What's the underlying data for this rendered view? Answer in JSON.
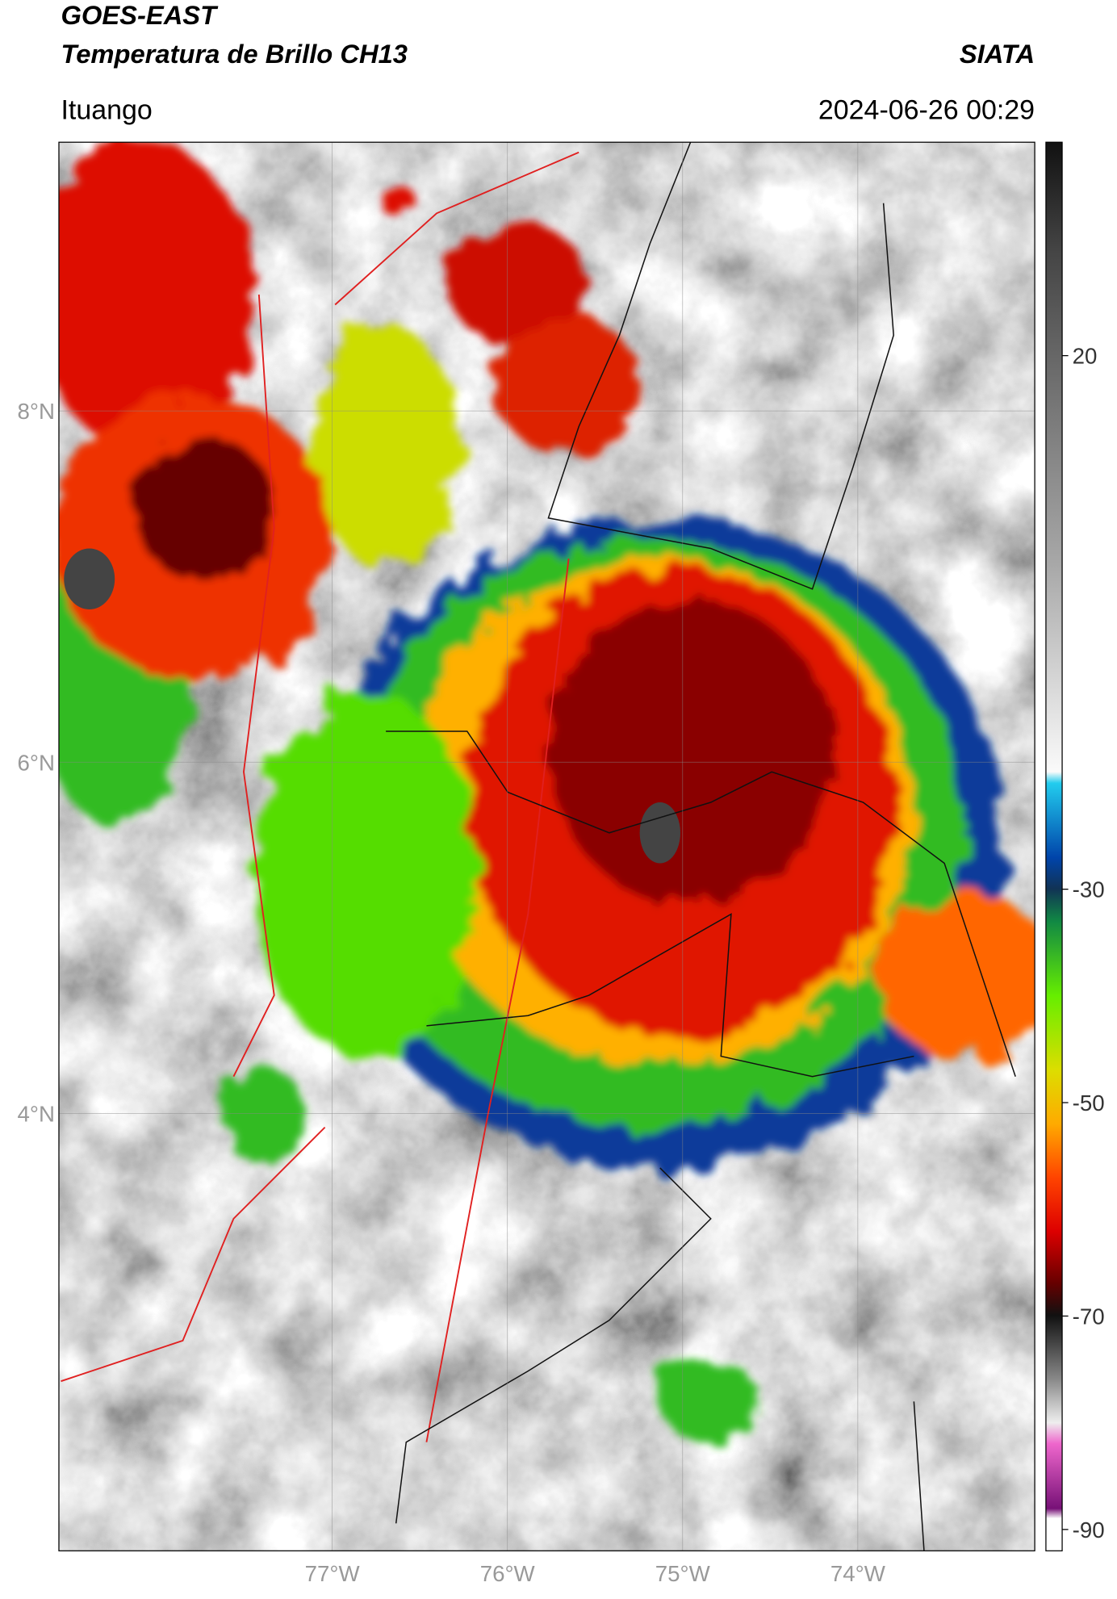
{
  "header": {
    "title_line1": "GOES-EAST",
    "title_line2": "Temperatura de Brillo CH13",
    "source": "SIATA",
    "region": "Ituango",
    "datetime": "2024-06-26 00:29"
  },
  "map": {
    "xlim": [
      -78.56,
      -72.99
    ],
    "ylim": [
      1.51,
      9.53
    ],
    "lat_ticks": [
      {
        "value": 8,
        "label": "8°N"
      },
      {
        "value": 6,
        "label": "6°N"
      },
      {
        "value": 4,
        "label": "4°N"
      }
    ],
    "lon_ticks": [
      {
        "value": -77,
        "label": "77°W"
      },
      {
        "value": -76,
        "label": "76°W"
      },
      {
        "value": -75,
        "label": "75°W"
      },
      {
        "value": -74,
        "label": "74°W"
      }
    ]
  },
  "colorbar": {
    "clim": [
      40,
      -92
    ],
    "ticks": [
      20,
      -30,
      -50,
      -70,
      -90
    ]
  }
}
